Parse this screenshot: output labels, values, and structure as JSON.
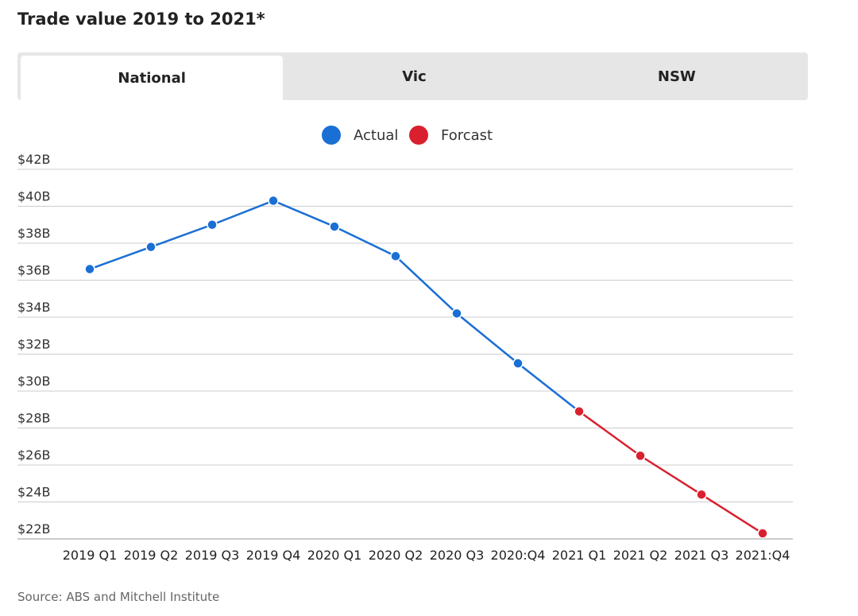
{
  "title": "Trade value 2019 to 2021*",
  "tabs": [
    {
      "label": "National",
      "active": true
    },
    {
      "label": "Vic",
      "active": false
    },
    {
      "label": "NSW",
      "active": false
    }
  ],
  "source": "Source: ABS and Mitchell Institute",
  "colors": {
    "actual": "#1a6fd4",
    "forecast": "#d9202f",
    "grid": "#cccccc"
  },
  "chart_data": {
    "type": "line",
    "categories": [
      "2019 Q1",
      "2019 Q2",
      "2019 Q3",
      "2019 Q4",
      "2020 Q1",
      "2020 Q2",
      "2020 Q3",
      "2020:Q4",
      "2021 Q1",
      "2021 Q2",
      "2021 Q3",
      "2021:Q4"
    ],
    "series": [
      {
        "name": "Actual",
        "color": "#1a6fd4",
        "values": [
          36.6,
          37.8,
          39.0,
          40.3,
          38.9,
          37.3,
          34.2,
          31.5,
          28.9,
          null,
          null,
          null
        ]
      },
      {
        "name": "Forcast",
        "color": "#d9202f",
        "values": [
          null,
          null,
          null,
          null,
          null,
          null,
          null,
          null,
          28.9,
          26.5,
          24.4,
          22.3
        ]
      }
    ],
    "ylim": [
      22,
      42
    ],
    "yticks": [
      "$22B",
      "$24B",
      "$26B",
      "$28B",
      "$30B",
      "$32B",
      "$34B",
      "$36B",
      "$38B",
      "$40B",
      "$42B"
    ],
    "ytick_values": [
      22,
      24,
      26,
      28,
      30,
      32,
      34,
      36,
      38,
      40,
      42
    ],
    "legend": "top-center",
    "grid": true
  }
}
